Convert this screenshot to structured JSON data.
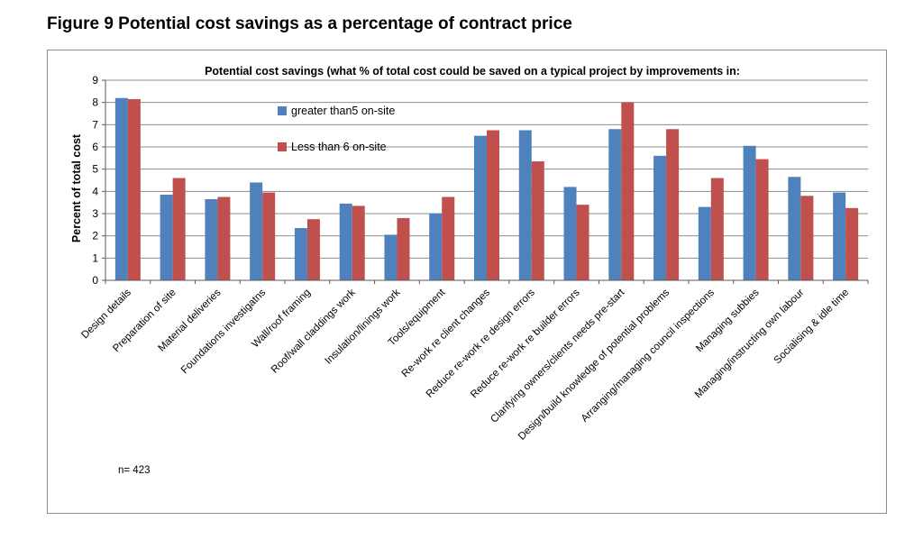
{
  "figure_title": "Figure 9 Potential cost savings as a percentage of contract price",
  "sample_note": "n= 423",
  "colors": {
    "series1": "#4f81bd",
    "series2": "#c0504d",
    "grid": "#8c8c8c"
  },
  "chart_data": {
    "type": "bar",
    "title": "Potential cost savings (what % of total cost could be saved on a typical project by improvements in:",
    "xlabel": "",
    "ylabel": "Percent of total cost",
    "ylim": [
      0,
      9
    ],
    "yticks": [
      0,
      1,
      2,
      3,
      4,
      5,
      6,
      7,
      8,
      9
    ],
    "grid": true,
    "legend_position": "top-center",
    "categories": [
      "Design details",
      "Preparation of site",
      "Material deliveries",
      "Foundations investigatns",
      "Wall/roof framing",
      "Roof/wall claddings work",
      "Insulation/linings work",
      "Tools/equipment",
      "Re-work re client changes",
      "Reduce re-work re design errors",
      "Reduce re-work re builder errors",
      "Clarifying owners/clients needs pre-start",
      "Design/build knowledge of potential problems",
      "Arranging/managing council inspections",
      "Managing subbies",
      "Managing/instructing own labour",
      "Socialising & idle time"
    ],
    "series": [
      {
        "name": "greater than5 on-site",
        "values": [
          8.2,
          3.85,
          3.65,
          4.4,
          2.35,
          3.45,
          2.05,
          3.0,
          6.5,
          6.75,
          4.2,
          6.8,
          5.6,
          3.3,
          6.05,
          4.65,
          3.95
        ]
      },
      {
        "name": "Less than 6 on-site",
        "values": [
          8.15,
          4.6,
          3.75,
          3.95,
          2.75,
          3.35,
          2.8,
          3.75,
          6.75,
          5.35,
          3.4,
          8.0,
          6.8,
          4.6,
          5.45,
          3.8,
          3.25
        ]
      }
    ]
  }
}
